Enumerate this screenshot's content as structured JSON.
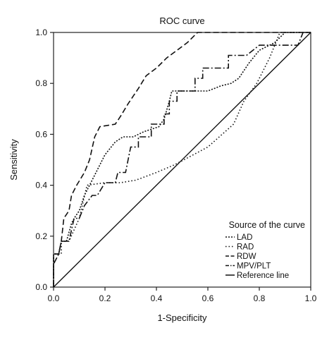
{
  "chart_data": {
    "type": "line",
    "title": "ROC curve",
    "xlabel": "1-Specificity",
    "ylabel": "Sensitivity",
    "xlim": [
      0,
      1
    ],
    "ylim": [
      0,
      1
    ],
    "xticks": [
      "0.0",
      "0.2",
      "0.4",
      "0.6",
      "0.8",
      "1.0"
    ],
    "yticks": [
      "0.0",
      "0.2",
      "0.4",
      "0.6",
      "0.8",
      "1.0"
    ],
    "grid": false,
    "legend": {
      "title": "Source of the curve",
      "placement": "bottom-right"
    },
    "series": [
      {
        "name": "LAD",
        "dash": "2 2",
        "points": [
          [
            0.0,
            0.0
          ],
          [
            0.0,
            0.13
          ],
          [
            0.02,
            0.13
          ],
          [
            0.03,
            0.18
          ],
          [
            0.05,
            0.18
          ],
          [
            0.07,
            0.25
          ],
          [
            0.08,
            0.27
          ],
          [
            0.1,
            0.3
          ],
          [
            0.12,
            0.36
          ],
          [
            0.14,
            0.4
          ],
          [
            0.17,
            0.46
          ],
          [
            0.2,
            0.52
          ],
          [
            0.24,
            0.57
          ],
          [
            0.27,
            0.59
          ],
          [
            0.31,
            0.59
          ],
          [
            0.35,
            0.61
          ],
          [
            0.38,
            0.62
          ],
          [
            0.41,
            0.63
          ],
          [
            0.43,
            0.66
          ],
          [
            0.45,
            0.73
          ],
          [
            0.46,
            0.77
          ],
          [
            0.6,
            0.77
          ],
          [
            0.65,
            0.79
          ],
          [
            0.69,
            0.8
          ],
          [
            0.72,
            0.82
          ],
          [
            0.76,
            0.88
          ],
          [
            0.8,
            0.93
          ],
          [
            0.86,
            0.96
          ],
          [
            0.9,
            1.0
          ],
          [
            1.0,
            1.0
          ]
        ]
      },
      {
        "name": "RAD",
        "dash": "1.5 3",
        "points": [
          [
            0.0,
            0.0
          ],
          [
            0.0,
            0.13
          ],
          [
            0.03,
            0.13
          ],
          [
            0.03,
            0.18
          ],
          [
            0.06,
            0.18
          ],
          [
            0.1,
            0.27
          ],
          [
            0.13,
            0.4
          ],
          [
            0.2,
            0.41
          ],
          [
            0.26,
            0.41
          ],
          [
            0.32,
            0.42
          ],
          [
            0.4,
            0.45
          ],
          [
            0.47,
            0.48
          ],
          [
            0.6,
            0.55
          ],
          [
            0.7,
            0.64
          ],
          [
            0.74,
            0.73
          ],
          [
            0.79,
            0.8
          ],
          [
            0.84,
            0.9
          ],
          [
            0.88,
            1.0
          ],
          [
            1.0,
            1.0
          ]
        ]
      },
      {
        "name": "RDW",
        "dash": "8 4",
        "points": [
          [
            0.0,
            0.0
          ],
          [
            0.0,
            0.13
          ],
          [
            0.02,
            0.13
          ],
          [
            0.03,
            0.18
          ],
          [
            0.04,
            0.27
          ],
          [
            0.06,
            0.3
          ],
          [
            0.07,
            0.36
          ],
          [
            0.09,
            0.4
          ],
          [
            0.12,
            0.45
          ],
          [
            0.14,
            0.5
          ],
          [
            0.16,
            0.59
          ],
          [
            0.18,
            0.63
          ],
          [
            0.24,
            0.64
          ],
          [
            0.26,
            0.67
          ],
          [
            0.29,
            0.72
          ],
          [
            0.33,
            0.78
          ],
          [
            0.36,
            0.83
          ],
          [
            0.4,
            0.86
          ],
          [
            0.44,
            0.9
          ],
          [
            0.48,
            0.93
          ],
          [
            0.52,
            0.96
          ],
          [
            0.56,
            1.0
          ],
          [
            1.0,
            1.0
          ]
        ]
      },
      {
        "name": "MPV/PLT",
        "dash": "9 3 2 3",
        "points": [
          [
            0.0,
            0.0
          ],
          [
            0.0,
            0.09
          ],
          [
            0.02,
            0.13
          ],
          [
            0.03,
            0.18
          ],
          [
            0.06,
            0.18
          ],
          [
            0.08,
            0.27
          ],
          [
            0.1,
            0.27
          ],
          [
            0.12,
            0.32
          ],
          [
            0.15,
            0.36
          ],
          [
            0.17,
            0.36
          ],
          [
            0.2,
            0.41
          ],
          [
            0.24,
            0.41
          ],
          [
            0.25,
            0.45
          ],
          [
            0.28,
            0.45
          ],
          [
            0.29,
            0.5
          ],
          [
            0.3,
            0.55
          ],
          [
            0.33,
            0.55
          ],
          [
            0.33,
            0.59
          ],
          [
            0.38,
            0.59
          ],
          [
            0.38,
            0.64
          ],
          [
            0.43,
            0.64
          ],
          [
            0.43,
            0.68
          ],
          [
            0.45,
            0.68
          ],
          [
            0.45,
            0.73
          ],
          [
            0.48,
            0.73
          ],
          [
            0.48,
            0.77
          ],
          [
            0.55,
            0.77
          ],
          [
            0.55,
            0.82
          ],
          [
            0.58,
            0.82
          ],
          [
            0.58,
            0.86
          ],
          [
            0.68,
            0.86
          ],
          [
            0.68,
            0.91
          ],
          [
            0.75,
            0.91
          ],
          [
            0.8,
            0.95
          ],
          [
            0.95,
            0.95
          ],
          [
            0.97,
            1.0
          ],
          [
            1.0,
            1.0
          ]
        ]
      },
      {
        "name": "Reference line",
        "dash": "",
        "points": [
          [
            0,
            0
          ],
          [
            1,
            1
          ]
        ]
      }
    ]
  }
}
